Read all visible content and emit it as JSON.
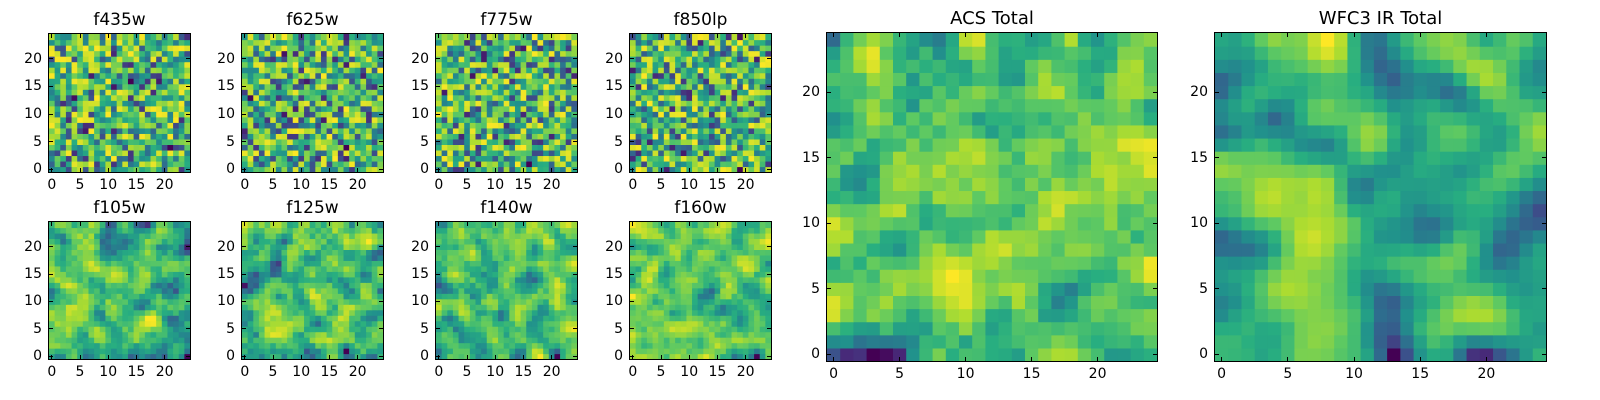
{
  "figure": {
    "background": "#ffffff"
  },
  "colormap": {
    "name": "viridis",
    "stops": [
      "#440154",
      "#472d7b",
      "#3b528b",
      "#2c728e",
      "#21918c",
      "#28ae80",
      "#5ec962",
      "#addc30",
      "#fde725"
    ]
  },
  "chart_data": [
    {
      "type": "heatmap",
      "title": "f435w",
      "cells": 25,
      "seed": 11,
      "smooth": 0,
      "xticks": [
        0,
        5,
        10,
        15,
        20
      ],
      "yticks": [
        0,
        5,
        10,
        15,
        20
      ],
      "xlim": [
        -0.5,
        24.5
      ],
      "ylim": [
        -0.5,
        24.5
      ],
      "grid": false
    },
    {
      "type": "heatmap",
      "title": "f625w",
      "cells": 25,
      "seed": 23,
      "smooth": 0,
      "xticks": [
        0,
        5,
        10,
        15,
        20
      ],
      "yticks": [
        0,
        5,
        10,
        15,
        20
      ],
      "xlim": [
        -0.5,
        24.5
      ],
      "ylim": [
        -0.5,
        24.5
      ],
      "grid": false
    },
    {
      "type": "heatmap",
      "title": "f775w",
      "cells": 25,
      "seed": 37,
      "smooth": 0,
      "xticks": [
        0,
        5,
        10,
        15,
        20
      ],
      "yticks": [
        0,
        5,
        10,
        15,
        20
      ],
      "xlim": [
        -0.5,
        24.5
      ],
      "ylim": [
        -0.5,
        24.5
      ],
      "grid": false
    },
    {
      "type": "heatmap",
      "title": "f850lp",
      "cells": 25,
      "seed": 41,
      "smooth": 0,
      "xticks": [
        0,
        5,
        10,
        15,
        20
      ],
      "yticks": [
        0,
        5,
        10,
        15,
        20
      ],
      "xlim": [
        -0.5,
        24.5
      ],
      "ylim": [
        -0.5,
        24.5
      ],
      "grid": false
    },
    {
      "type": "heatmap",
      "title": "f105w",
      "cells": 25,
      "seed": 53,
      "smooth": 1,
      "xticks": [
        0,
        5,
        10,
        15,
        20
      ],
      "yticks": [
        0,
        5,
        10,
        15,
        20
      ],
      "xlim": [
        -0.5,
        24.5
      ],
      "ylim": [
        -0.5,
        24.5
      ],
      "grid": false
    },
    {
      "type": "heatmap",
      "title": "f125w",
      "cells": 25,
      "seed": 67,
      "smooth": 1,
      "xticks": [
        0,
        5,
        10,
        15,
        20
      ],
      "yticks": [
        0,
        5,
        10,
        15,
        20
      ],
      "xlim": [
        -0.5,
        24.5
      ],
      "ylim": [
        -0.5,
        24.5
      ],
      "grid": false
    },
    {
      "type": "heatmap",
      "title": "f140w",
      "cells": 25,
      "seed": 79,
      "smooth": 1,
      "xticks": [
        0,
        5,
        10,
        15,
        20
      ],
      "yticks": [
        0,
        5,
        10,
        15,
        20
      ],
      "xlim": [
        -0.5,
        24.5
      ],
      "ylim": [
        -0.5,
        24.5
      ],
      "grid": false
    },
    {
      "type": "heatmap",
      "title": "f160w",
      "cells": 25,
      "seed": 83,
      "smooth": 1,
      "xticks": [
        0,
        5,
        10,
        15,
        20
      ],
      "yticks": [
        0,
        5,
        10,
        15,
        20
      ],
      "xlim": [
        -0.5,
        24.5
      ],
      "ylim": [
        -0.5,
        24.5
      ],
      "grid": false
    },
    {
      "type": "heatmap",
      "title": "ACS Total",
      "cells": 25,
      "seed": 97,
      "smooth": 1,
      "xticks": [
        0,
        5,
        10,
        15,
        20
      ],
      "yticks": [
        0,
        5,
        10,
        15,
        20
      ],
      "xlim": [
        -0.5,
        24.5
      ],
      "ylim": [
        -0.5,
        24.5
      ],
      "grid": false
    },
    {
      "type": "heatmap",
      "title": "WFC3 IR Total",
      "cells": 25,
      "seed": 101,
      "smooth": 2,
      "xticks": [
        0,
        5,
        10,
        15,
        20
      ],
      "yticks": [
        0,
        5,
        10,
        15,
        20
      ],
      "xlim": [
        -0.5,
        24.5
      ],
      "ylim": [
        -0.5,
        24.5
      ],
      "grid": false
    }
  ]
}
